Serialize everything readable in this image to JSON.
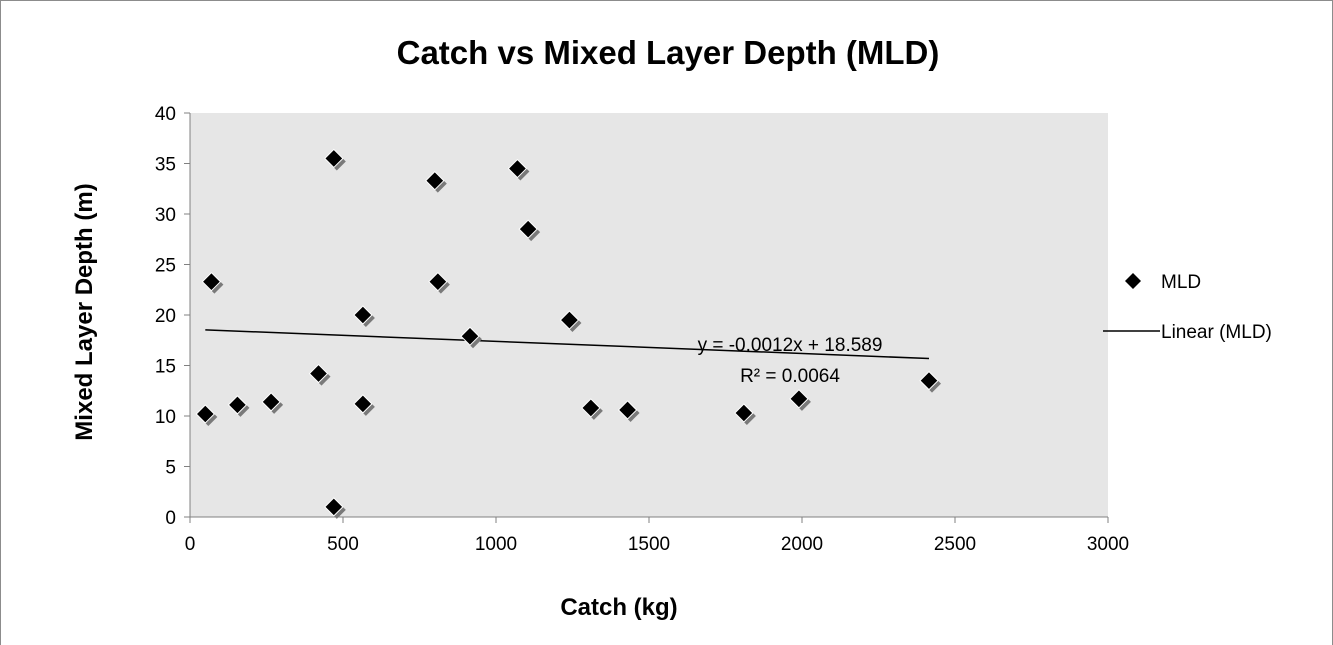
{
  "chart_data": {
    "type": "scatter",
    "title": "Catch vs Mixed Layer Depth (MLD)",
    "xlabel": "Catch (kg)",
    "ylabel": "Mixed Layer Depth (m)",
    "xlim": [
      0,
      3000
    ],
    "ylim": [
      0,
      40
    ],
    "x_ticks": [
      "0",
      "500",
      "1000",
      "1500",
      "2000",
      "2500",
      "3000"
    ],
    "y_ticks": [
      "0",
      "5",
      "10",
      "15",
      "20",
      "25",
      "30",
      "35",
      "40"
    ],
    "grid": false,
    "plot_background": "#e6e6e6",
    "legend_position": "right",
    "series": [
      {
        "name": "MLD",
        "marker": "diamond",
        "color": "#000000",
        "points": [
          {
            "x": 50,
            "y": 10.2
          },
          {
            "x": 70,
            "y": 23.3
          },
          {
            "x": 155,
            "y": 11.1
          },
          {
            "x": 265,
            "y": 11.4
          },
          {
            "x": 420,
            "y": 14.2
          },
          {
            "x": 470,
            "y": 35.5
          },
          {
            "x": 470,
            "y": 1.0
          },
          {
            "x": 565,
            "y": 20.0
          },
          {
            "x": 565,
            "y": 11.2
          },
          {
            "x": 800,
            "y": 33.3
          },
          {
            "x": 810,
            "y": 23.3
          },
          {
            "x": 915,
            "y": 17.9
          },
          {
            "x": 1070,
            "y": 34.5
          },
          {
            "x": 1105,
            "y": 28.5
          },
          {
            "x": 1240,
            "y": 19.5
          },
          {
            "x": 1310,
            "y": 10.8
          },
          {
            "x": 1430,
            "y": 10.6
          },
          {
            "x": 1810,
            "y": 10.3
          },
          {
            "x": 1990,
            "y": 11.7
          },
          {
            "x": 2415,
            "y": 13.5
          }
        ]
      },
      {
        "name": "Linear (MLD)",
        "type": "trendline",
        "color": "#000000",
        "slope": -0.0012,
        "intercept": 18.589,
        "x_range": [
          50,
          2415
        ]
      }
    ],
    "annotations": {
      "equation": "y = -0.0012x + 18.589",
      "r_squared": "R² = 0.0064"
    }
  }
}
